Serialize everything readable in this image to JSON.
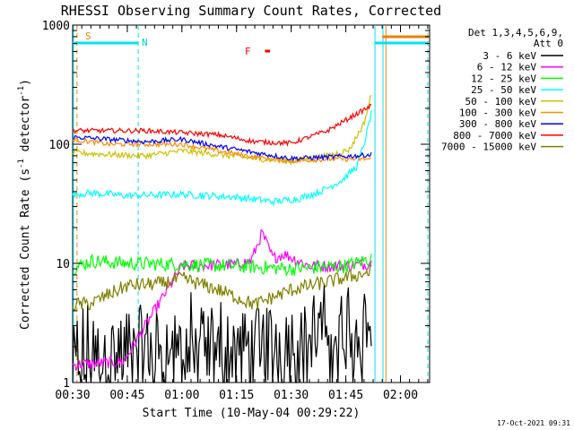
{
  "chart_data": {
    "type": "line",
    "title": "RHESSI Observing Summary Count Rates, Corrected",
    "xlabel": "Start Time (10-May-04 00:29:22)",
    "ylabel_main": "Corrected Count Rate (s",
    "ylabel_sup1": "-1",
    "ylabel_mid": " detector",
    "ylabel_sup2": "-1",
    "ylabel_end": ")",
    "yscale": "log",
    "ylim": [
      1,
      1000
    ],
    "xlim_min": [
      30,
      128
    ],
    "x_ticks": [
      "00:30",
      "00:45",
      "01:00",
      "01:15",
      "01:30",
      "01:45",
      "02:00"
    ],
    "x_tick_values": [
      30,
      45,
      60,
      75,
      90,
      105,
      120
    ],
    "y_ticks": [
      "1",
      "10",
      "100",
      "1000"
    ],
    "y_tick_values": [
      1,
      10,
      100,
      1000
    ],
    "legend_header": [
      "Det 1,3,4,5,6,9,",
      "Att 0"
    ],
    "legend_placement": "right",
    "timestamp": "17-Oct-2021 09:31",
    "markers": {
      "s_label": "S",
      "n_label": "N",
      "f_label": "F",
      "s_time": 31,
      "n_time": 50,
      "f_time": [
        82.8,
        84.2
      ],
      "saa_end": 30.2,
      "night_spans": [
        [
          30,
          48
        ],
        [
          113,
          128
        ]
      ],
      "attenuator_span": [
        115,
        128
      ],
      "vlines": [
        {
          "t": 30.2,
          "color": "#00e5ee",
          "dash": false
        },
        {
          "t": 31.2,
          "color": "#f08000",
          "dash": true
        },
        {
          "t": 48,
          "color": "#00e5ee",
          "dash": true
        },
        {
          "t": 113,
          "color": "#00e5ee",
          "dash": false
        },
        {
          "t": 115.2,
          "color": "#00e5ee",
          "dash": false
        },
        {
          "t": 116,
          "color": "#f08000",
          "dash": false
        },
        {
          "t": 127.5,
          "color": "#00e5ee",
          "dash": true
        }
      ]
    },
    "series": [
      {
        "name": "3 - 6 keV",
        "color": "#000000",
        "t": [
          30,
          45,
          60,
          75,
          90,
          105,
          112
        ],
        "values": [
          1.5,
          1.8,
          2.0,
          1.8,
          2.2,
          2.5,
          3.2
        ]
      },
      {
        "name": "6 - 12 keV",
        "color": "#ff00ff",
        "t": [
          30,
          44,
          60,
          75,
          79,
          82,
          85,
          88,
          95,
          105,
          112
        ],
        "values": [
          1.4,
          1.5,
          9.5,
          9.8,
          10.5,
          18,
          11,
          12,
          9.5,
          9.5,
          10
        ]
      },
      {
        "name": "12 - 25 keV",
        "color": "#00ff00",
        "t": [
          30,
          35,
          45,
          60,
          75,
          90,
          105,
          112
        ],
        "values": [
          9.0,
          10.5,
          10.0,
          9.8,
          9.5,
          9.0,
          9.5,
          11
        ]
      },
      {
        "name": "25 - 50 keV",
        "color": "#00ffff",
        "t": [
          30,
          35,
          45,
          60,
          75,
          85,
          92,
          98,
          104,
          108,
          110,
          112
        ],
        "values": [
          38,
          39,
          37,
          38,
          36,
          33,
          35,
          40,
          50,
          65,
          100,
          180
        ]
      },
      {
        "name": "50 - 100 keV",
        "color": "#d0c000",
        "t": [
          30,
          40,
          50,
          60,
          70,
          80,
          90,
          100,
          106,
          110,
          112
        ],
        "values": [
          85,
          82,
          80,
          88,
          82,
          76,
          72,
          80,
          90,
          150,
          260
        ]
      },
      {
        "name": "100 - 300 keV",
        "color": "#ff8c00",
        "t": [
          30,
          40,
          50,
          60,
          70,
          80,
          90,
          100,
          108,
          112
        ],
        "values": [
          110,
          100,
          100,
          100,
          88,
          78,
          72,
          75,
          75,
          75
        ]
      },
      {
        "name": "300 - 800 keV",
        "color": "#0000ff",
        "t": [
          30,
          40,
          50,
          60,
          70,
          80,
          90,
          100,
          108,
          112
        ],
        "values": [
          115,
          110,
          105,
          110,
          96,
          85,
          76,
          78,
          80,
          82
        ]
      },
      {
        "name": "800 - 7000 keV",
        "color": "#ff0000",
        "t": [
          30,
          40,
          50,
          60,
          70,
          80,
          90,
          100,
          108,
          112
        ],
        "values": [
          130,
          130,
          130,
          125,
          120,
          105,
          102,
          130,
          180,
          210
        ]
      },
      {
        "name": "7000 - 15000 keV",
        "color": "#808000",
        "t": [
          30,
          35,
          40,
          45,
          55,
          60,
          70,
          80,
          90,
          100,
          112
        ],
        "values": [
          4.5,
          4.6,
          5.5,
          6.5,
          6.8,
          7.5,
          6.0,
          4.5,
          6.0,
          7.0,
          8.5
        ]
      }
    ]
  }
}
